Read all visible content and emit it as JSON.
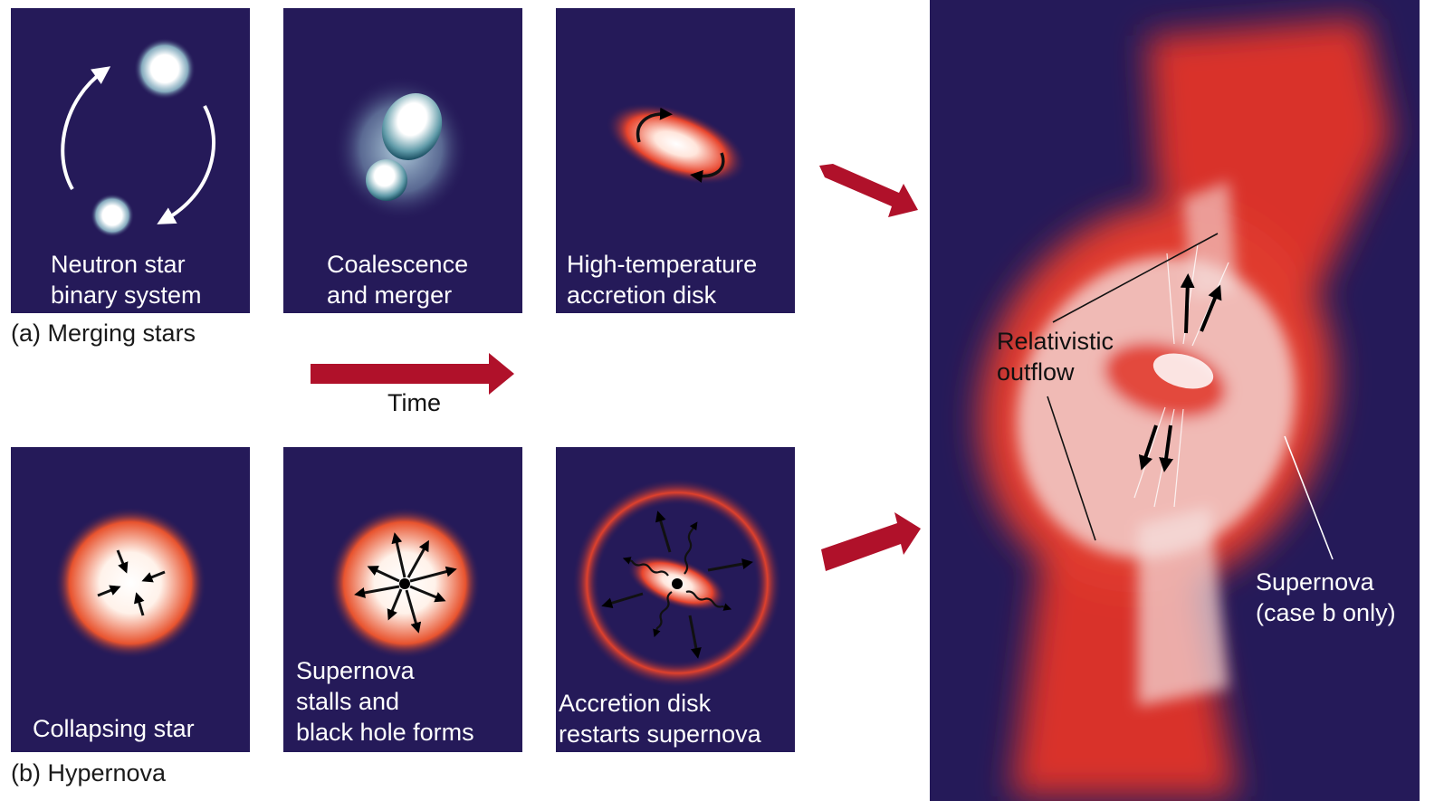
{
  "row_a": {
    "panels": [
      {
        "line1": "Neutron star",
        "line2": "binary system"
      },
      {
        "line1": "Coalescence",
        "line2": "and merger"
      },
      {
        "line1": "High-temperature",
        "line2": "accretion disk"
      }
    ],
    "caption": "(a) Merging stars"
  },
  "time_label": "Time",
  "row_b": {
    "panels": [
      {
        "line1": "Collapsing star"
      },
      {
        "line1": "Supernova",
        "line2": "stalls and",
        "line3": "black hole forms"
      },
      {
        "line1": "Accretion disk",
        "line2": "restarts supernova"
      }
    ],
    "caption": "(b) Hypernova"
  },
  "big_panel": {
    "outflow_line1": "Relativistic",
    "outflow_line2": "outflow",
    "supernova_line1": "Supernova",
    "supernova_line2": "(case b only)"
  },
  "colors": {
    "panel_bg": "#251a59",
    "arrow_red": "#b0112a",
    "glow_red": "#e0382a"
  }
}
